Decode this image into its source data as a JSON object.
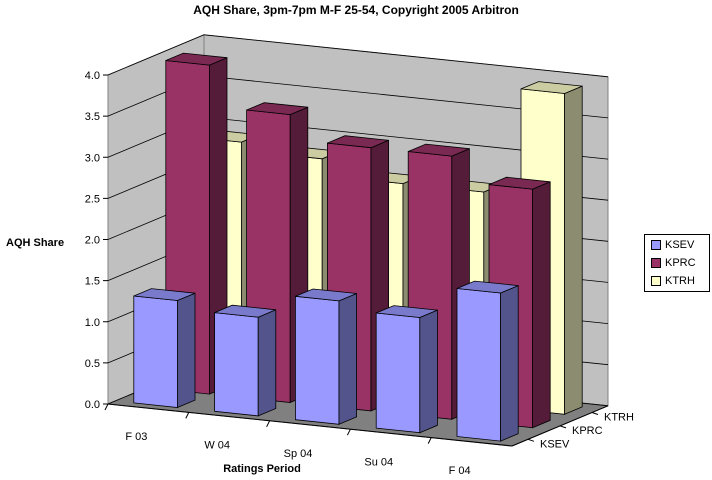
{
  "chart_data": {
    "type": "bar",
    "title": "AQH Share, 3pm-7pm M-F 25-54, Copyright 2005 Arbitron",
    "xlabel": "Ratings Period",
    "ylabel": "AQH Share",
    "zlabel": "",
    "categories": [
      "F 03",
      "W 04",
      "Sp 04",
      "Su 04",
      "F 04"
    ],
    "depth_labels": [
      "KSEV",
      "KPRC",
      "KTRH"
    ],
    "yticks": [
      "0.0",
      "0.5",
      "1.0",
      "1.5",
      "2.0",
      "2.5",
      "3.0",
      "3.5",
      "4.0"
    ],
    "ylim": [
      0,
      4.0
    ],
    "grid": true,
    "legend_position": "right",
    "projection": "3d",
    "series": [
      {
        "name": "KSEV",
        "color": "#9999ff",
        "values": [
          1.3,
          1.2,
          1.5,
          1.4,
          1.8
        ]
      },
      {
        "name": "KPRC",
        "color": "#993366",
        "values": [
          4.0,
          3.5,
          3.2,
          3.2,
          2.9
        ]
      },
      {
        "name": "KTRH",
        "color": "#ffffcc",
        "values": [
          2.9,
          2.8,
          2.6,
          2.6,
          3.9
        ]
      }
    ]
  }
}
